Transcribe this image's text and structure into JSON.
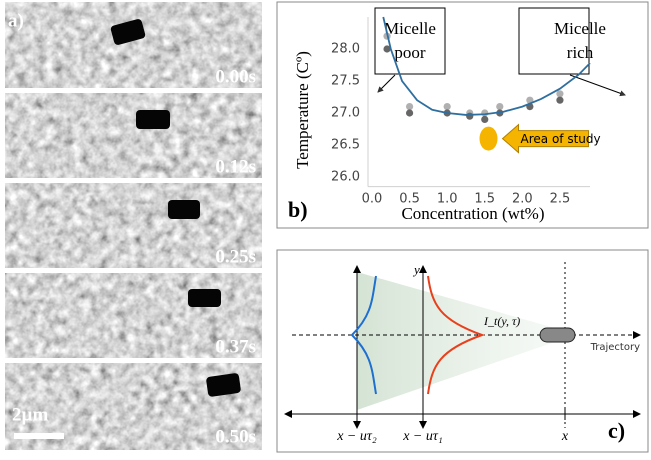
{
  "panel_a": {
    "label": "a)",
    "times": [
      "0.00s",
      "0.12s",
      "0.25s",
      "0.37s",
      "0.50s"
    ],
    "scale_bar": "2µm"
  },
  "chart_data": {
    "type": "scatter",
    "label": "b)",
    "x_label": "Concentration (wt%)",
    "y_label": "Temperature (Cº)",
    "xlim": [
      0,
      2.9
    ],
    "ylim": [
      25.85,
      28.5
    ],
    "xticks": [
      {
        "value": 0,
        "label": "0.0"
      },
      0.5,
      {
        "value": 1,
        "label": "1.0"
      },
      1.5,
      {
        "value": 2,
        "label": "2.0"
      },
      2.5
    ],
    "yticks": [
      {
        "value": 26,
        "label": "26.0"
      },
      26.5,
      {
        "value": 27,
        "label": "27.0"
      },
      27.5,
      {
        "value": 28,
        "label": "28.0"
      }
    ],
    "series": [
      {
        "color": "#b0b0b0",
        "x": [
          0.2,
          0.5,
          1.0,
          1.3,
          1.5,
          1.7,
          2.1,
          2.5
        ],
        "values": [
          28.2,
          27.1,
          27.1,
          27.0,
          27.0,
          27.1,
          27.2,
          27.3
        ]
      },
      {
        "color": "#666666",
        "x": [
          0.2,
          0.5,
          1.0,
          1.3,
          1.5,
          1.7,
          2.1,
          2.5
        ],
        "values": [
          28.0,
          27.0,
          27.0,
          26.95,
          26.9,
          27.0,
          27.1,
          27.2
        ]
      },
      {
        "type": "line",
        "color": "#2e6fa0",
        "x": [
          0.15,
          0.25,
          0.4,
          0.6,
          0.8,
          1.0,
          1.25,
          1.5,
          1.75,
          2.0,
          2.25,
          2.5,
          2.75,
          2.9
        ],
        "values": [
          28.5,
          28.0,
          27.5,
          27.2,
          27.05,
          27.0,
          26.97,
          26.98,
          27.02,
          27.1,
          27.22,
          27.38,
          27.6,
          27.78
        ]
      }
    ],
    "annotations": [
      "Micelle poor",
      "Micelle rich"
    ],
    "area_of_study": {
      "text": "Area of study",
      "x": 1.55,
      "y": 26.6,
      "color": "#f5b400"
    }
  },
  "panel_c": {
    "label": "c)",
    "y_axis": "y",
    "intensity": "I_t(y, τ)",
    "trajectory": "Trajectory",
    "ticks": [
      "x − uτ₂",
      "x − uτ₁",
      "x"
    ]
  }
}
